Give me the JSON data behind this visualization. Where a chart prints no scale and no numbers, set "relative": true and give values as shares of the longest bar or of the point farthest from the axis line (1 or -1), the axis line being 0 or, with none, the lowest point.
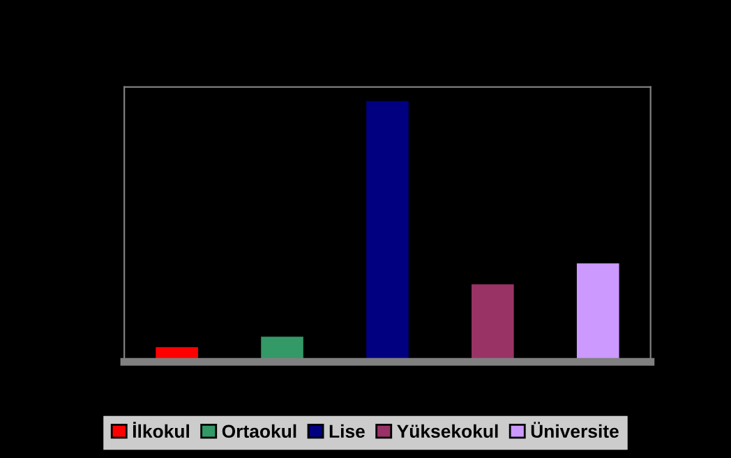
{
  "chart_data": {
    "type": "bar",
    "relative": true,
    "stacked": true,
    "categories": [
      null,
      null,
      null,
      null,
      null
    ],
    "series": [
      {
        "name": "İlkokul",
        "color": "#ff0000",
        "values": [
          0.06,
          null,
          null,
          null,
          null
        ]
      },
      {
        "name": "Ortaokul",
        "color": "#339966",
        "values": [
          null,
          0.1,
          null,
          null,
          null
        ]
      },
      {
        "name": "Lise",
        "color": "#000080",
        "values": [
          null,
          null,
          1,
          null,
          null
        ]
      },
      {
        "name": "Yüksekokul",
        "color": "#993366",
        "values": [
          null,
          null,
          null,
          0.3,
          null
        ]
      },
      {
        "name": "Üniversite",
        "color": "#cc99ff",
        "values": [
          null,
          null,
          null,
          null,
          0.38
        ]
      }
    ],
    "legend": "bottom"
  }
}
